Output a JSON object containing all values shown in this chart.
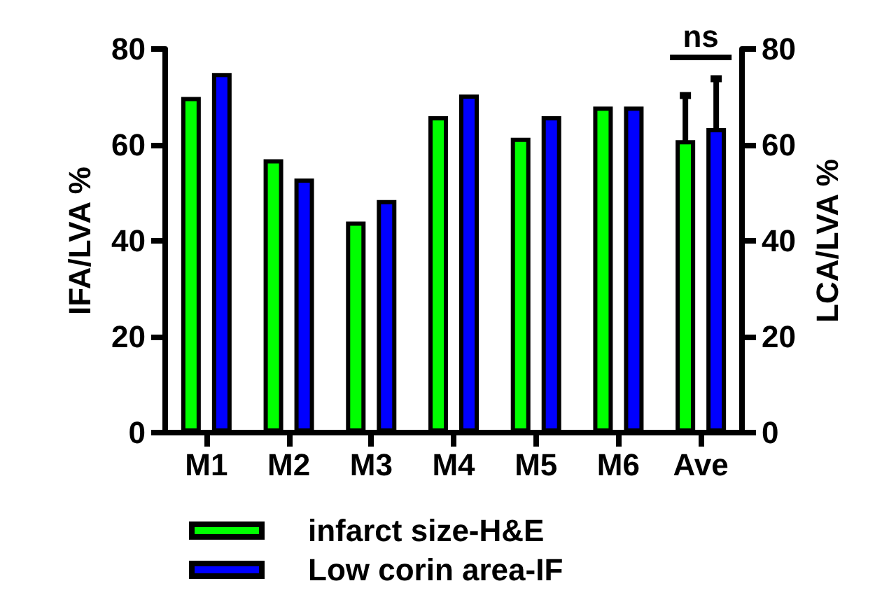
{
  "chart_data": {
    "type": "bar",
    "ylabel": "IFA/LVA %",
    "y2label": "LCA/LVA %",
    "categories": [
      "M1",
      "M2",
      "M3",
      "M4",
      "M5",
      "M6",
      "Ave"
    ],
    "series": [
      {
        "name": "infarct size-H&E",
        "color": "#00ff00",
        "values": [
          70,
          57,
          44,
          66,
          61.5,
          68,
          61
        ],
        "errors": [
          null,
          null,
          null,
          null,
          null,
          null,
          9.3
        ]
      },
      {
        "name": "Low corin area-IF",
        "color": "#0000ff",
        "values": [
          75,
          53,
          48.5,
          70.5,
          66,
          68,
          63.5
        ],
        "errors": [
          null,
          null,
          null,
          null,
          null,
          null,
          10.3
        ]
      }
    ],
    "ylim": [
      0,
      80
    ],
    "yticks": [
      0,
      20,
      40,
      60,
      80
    ],
    "y2lim": [
      0,
      80
    ],
    "y2ticks": [
      0,
      20,
      40,
      60,
      80
    ],
    "annotations": [
      "ns"
    ],
    "grid": false,
    "legend": "bottom"
  }
}
